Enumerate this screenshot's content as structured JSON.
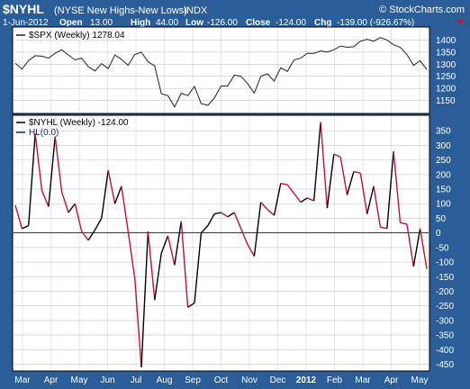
{
  "header": {
    "symbol": "$NYHL",
    "description": "(NYSE New Highs-New Lows)",
    "exchange": "INDX",
    "date": "1-Jun-2012",
    "open_label": "Open",
    "open_value": "13.00",
    "high_label": "High",
    "high_value": "44.00",
    "low_label": "Low",
    "low_value": "-126.00",
    "close_label": "Close",
    "close_value": "-124.00",
    "chg_label": "Chg",
    "chg_value": "-139.00 (-926.67%)",
    "watermark": "© StockCharts.com"
  },
  "colors": {
    "frame": "#2b5e99",
    "panel_bg": "#ffffff",
    "grid": "#c8c8c8",
    "spx_line": "#202020",
    "up_line": "#000000",
    "down_line": "#c8102e",
    "hl_legend": "#1a237e",
    "down_arrow": "#c8102e"
  },
  "chart_data": [
    {
      "type": "line",
      "legend": "$SPX (Weekly) 1278.04",
      "ylim": [
        1100,
        1450
      ],
      "yticks": [
        1150,
        1200,
        1250,
        1300,
        1350,
        1400
      ],
      "grid": true,
      "x_labels": [
        "Mar",
        "Apr",
        "May",
        "Jun",
        "Jul",
        "Aug",
        "Sep",
        "Oct",
        "Nov",
        "Dec",
        "2012",
        "Feb",
        "Mar",
        "Apr",
        "May"
      ],
      "series": [
        {
          "name": "$SPX",
          "values": [
            1304,
            1280,
            1315,
            1335,
            1333,
            1325,
            1345,
            1360,
            1338,
            1318,
            1325,
            1290,
            1272,
            1302,
            1282,
            1338,
            1320,
            1295,
            1340,
            1350,
            1310,
            1293,
            1178,
            1170,
            1123,
            1180,
            1170,
            1208,
            1137,
            1130,
            1160,
            1210,
            1210,
            1255,
            1250,
            1220,
            1180,
            1250,
            1260,
            1230,
            1285,
            1270,
            1318,
            1325,
            1345,
            1345,
            1355,
            1350,
            1360,
            1375,
            1370,
            1372,
            1395,
            1403,
            1395,
            1410,
            1400,
            1380,
            1370,
            1340,
            1295,
            1315,
            1278
          ]
        }
      ]
    },
    {
      "type": "line",
      "legend": "$NYHL (Weekly) -124.00",
      "legend2": "HL(0.0)",
      "ylim": [
        -470,
        400
      ],
      "yticks": [
        -450,
        -400,
        -350,
        -300,
        -250,
        -200,
        -150,
        -100,
        -50,
        0,
        50,
        100,
        150,
        200,
        250,
        300,
        350
      ],
      "reference_line": 0,
      "grid": true,
      "series": [
        {
          "name": "$NYHL",
          "values": [
            95,
            15,
            25,
            340,
            145,
            90,
            330,
            140,
            70,
            100,
            5,
            -25,
            10,
            50,
            215,
            100,
            160,
            5,
            -155,
            -460,
            5,
            -230,
            -70,
            -10,
            -110,
            40,
            -255,
            -240,
            0,
            25,
            65,
            70,
            55,
            70,
            15,
            -40,
            -80,
            105,
            80,
            60,
            170,
            165,
            135,
            105,
            120,
            110,
            380,
            85,
            270,
            260,
            130,
            210,
            205,
            65,
            160,
            20,
            15,
            280,
            35,
            30,
            -115,
            15,
            -124
          ]
        }
      ]
    }
  ]
}
